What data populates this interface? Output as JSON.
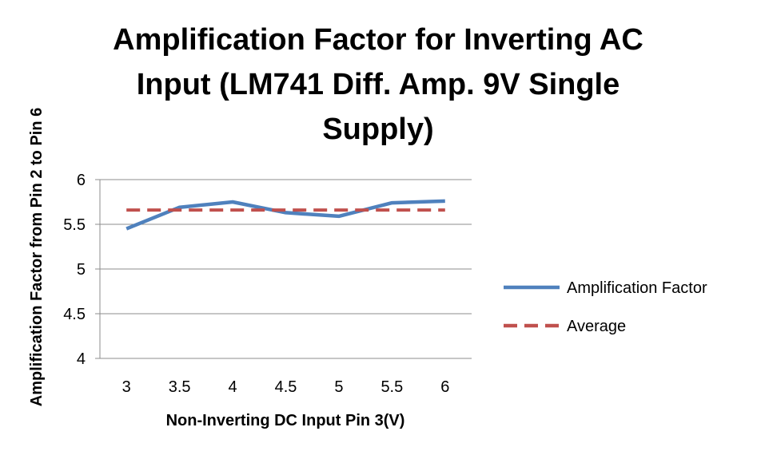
{
  "chart_data": {
    "type": "line",
    "title_lines": [
      "Amplification Factor for Inverting AC",
      "Input (LM741 Diff. Amp. 9V Single",
      "Supply)"
    ],
    "xlabel": "Non-Inverting DC Input Pin 3(V)",
    "ylabel": "Amplification Factor from Pin 2 to Pin 6",
    "x": [
      3,
      3.5,
      4,
      4.5,
      5,
      5.5,
      6
    ],
    "x_tick_labels": [
      "3",
      "3.5",
      "4",
      "4.5",
      "5",
      "5.5",
      "6"
    ],
    "y_tick_labels": [
      "6",
      "5.5",
      "5",
      "4.5",
      "4"
    ],
    "y_ticks": [
      6,
      5.5,
      5,
      4.5,
      4
    ],
    "ylim": [
      4,
      6
    ],
    "grid": true,
    "legend_position": "right",
    "series": [
      {
        "name": "Amplification Factor",
        "values": [
          5.45,
          5.69,
          5.75,
          5.63,
          5.59,
          5.74,
          5.76
        ],
        "color": "#4F81BD",
        "style": "solid"
      },
      {
        "name": "Average",
        "values": [
          5.66,
          5.66,
          5.66,
          5.66,
          5.66,
          5.66,
          5.66
        ],
        "color": "#C0504D",
        "style": "dashed"
      }
    ]
  }
}
